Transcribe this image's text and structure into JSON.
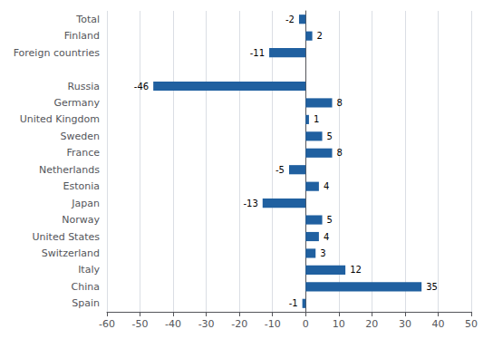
{
  "chart_data": {
    "type": "bar",
    "orientation": "horizontal",
    "categories": [
      "Total",
      "Finland",
      "Foreign countries",
      null,
      "Russia",
      "Germany",
      "United Kingdom",
      "Sweden",
      "France",
      "Netherlands",
      "Estonia",
      "Japan",
      "Norway",
      "United States",
      "Switzerland",
      "Italy",
      "China",
      "Spain"
    ],
    "values": [
      -2,
      2,
      -11,
      null,
      -46,
      8,
      1,
      5,
      8,
      -5,
      4,
      -13,
      5,
      4,
      3,
      12,
      35,
      -1
    ],
    "color": "#2060a0",
    "xlim": [
      -60,
      50
    ],
    "xticks": [
      -60,
      -50,
      -40,
      -30,
      -20,
      -10,
      0,
      10,
      20,
      30,
      40,
      50
    ],
    "grid": true,
    "data_labels": true
  }
}
